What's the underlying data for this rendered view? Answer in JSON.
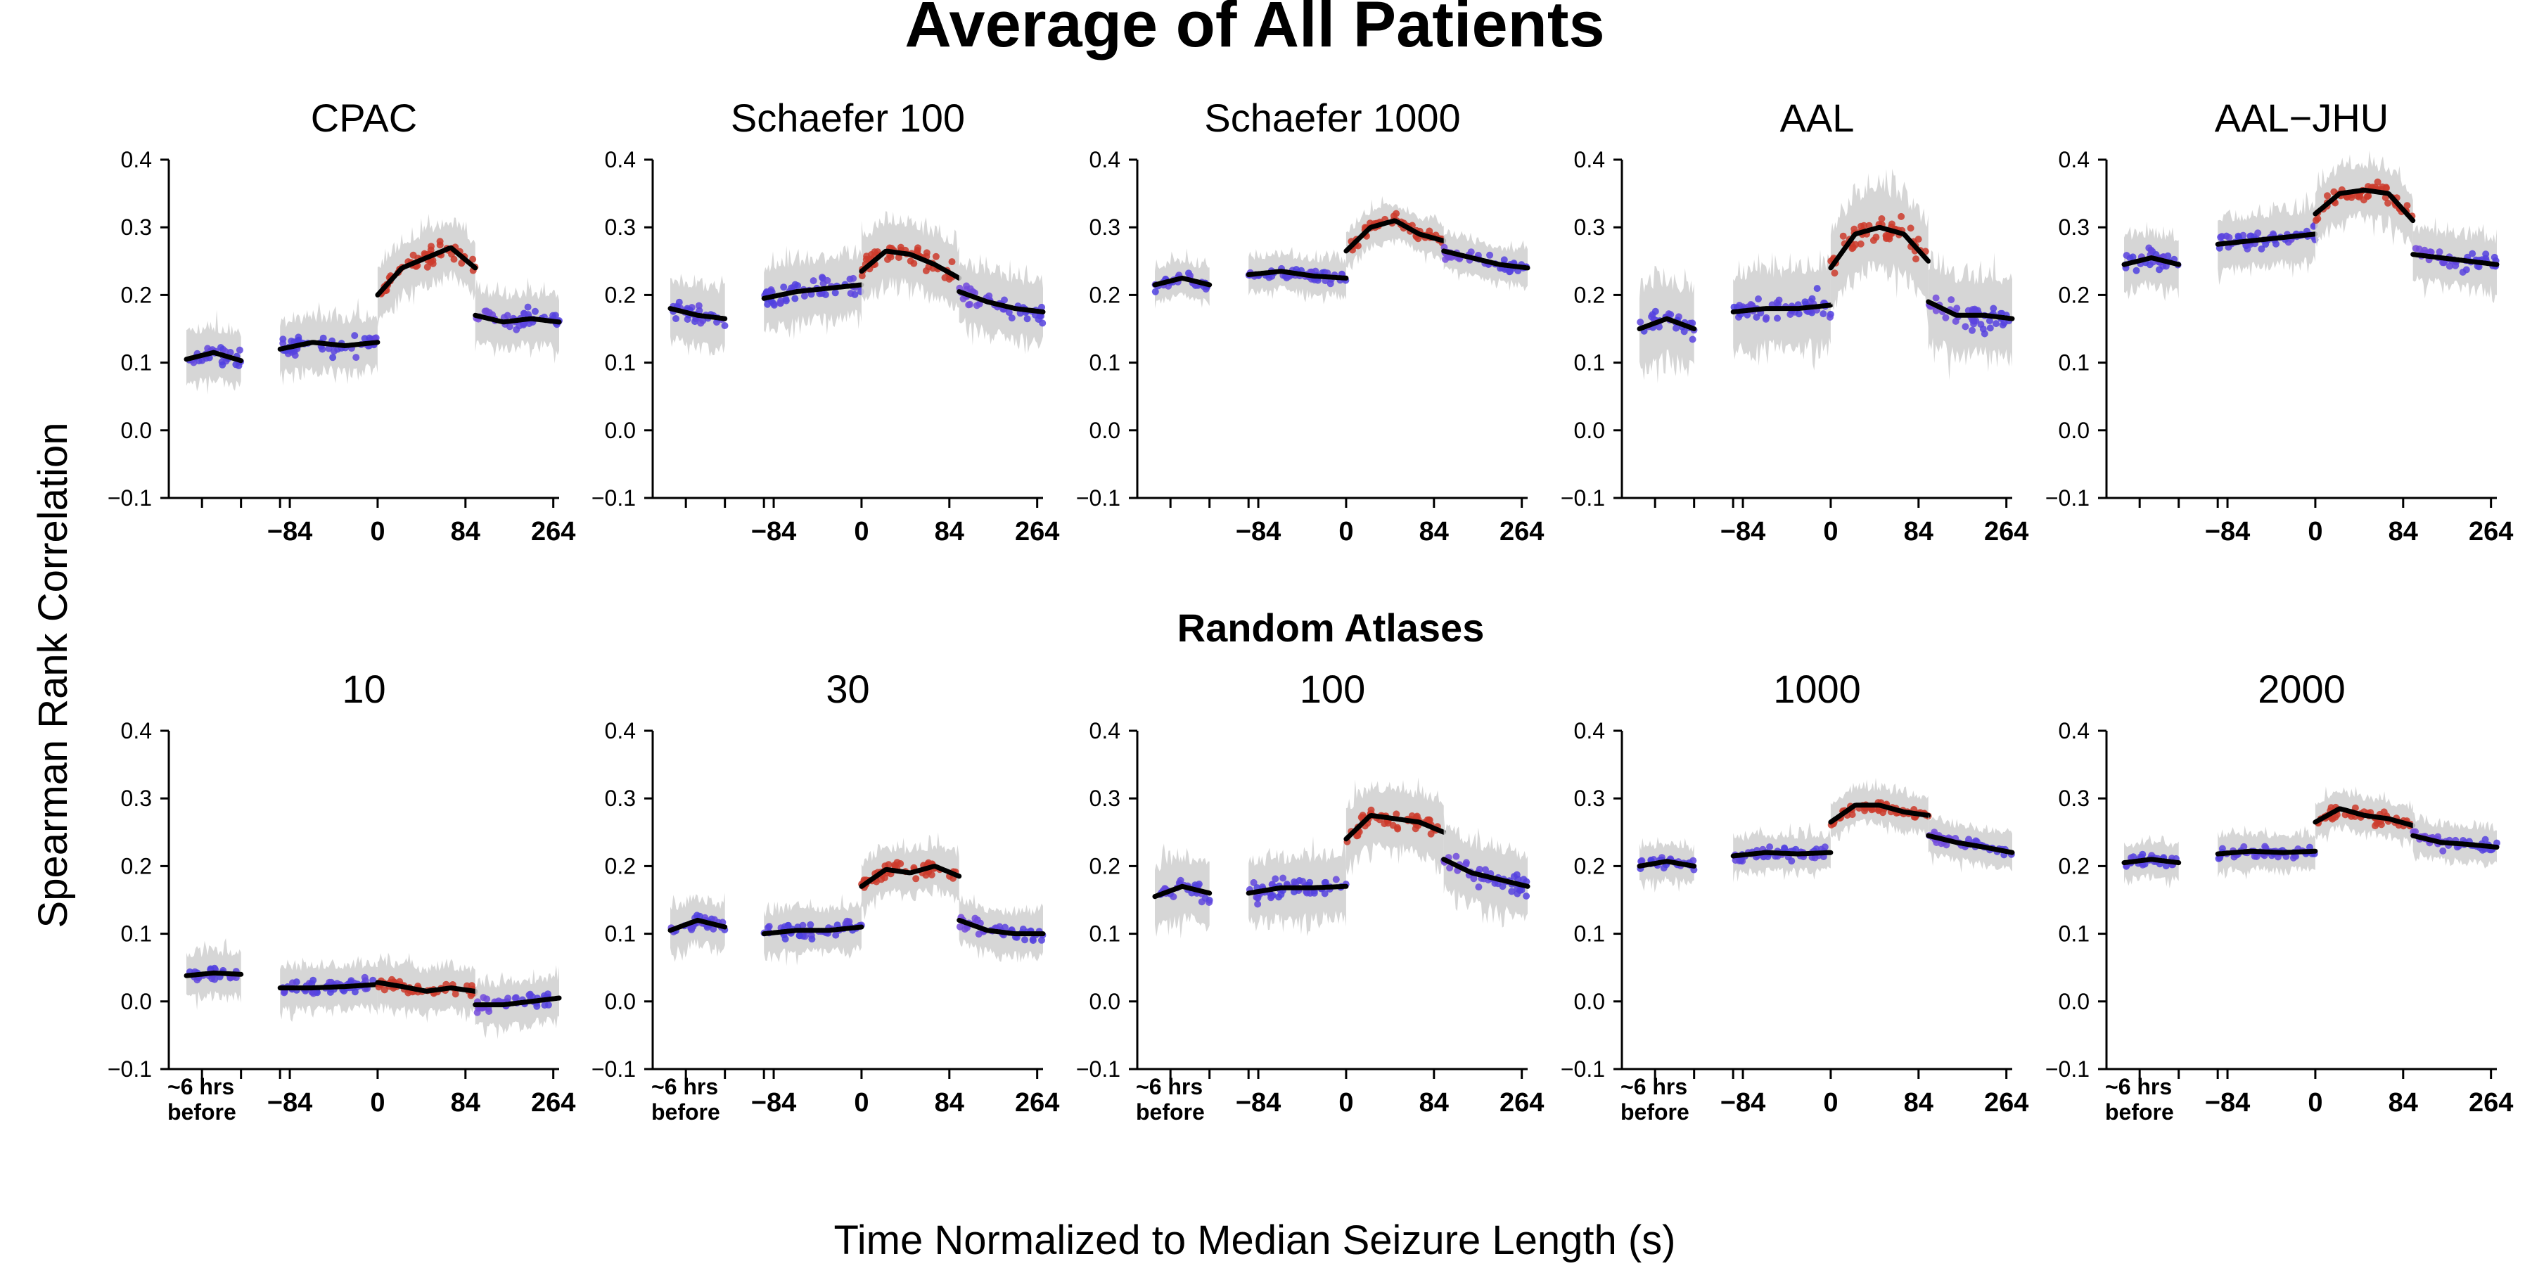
{
  "figure": {
    "title": "Average of All Patients",
    "row_title": "Random Atlases",
    "xlabel": "Time Normalized to Median Seizure Length (s)",
    "ylabel": "Spearman Rank Correlation"
  },
  "colors": {
    "interictal": "#4a3fe0",
    "ictal": "#cc3b2c",
    "mean_line": "#000000",
    "band": "#cfcfcf"
  },
  "chart_data": [
    {
      "type": "line",
      "title": "CPAC",
      "ylim": [
        -0.1,
        0.4
      ],
      "yticks": [
        "0.4",
        "0.3",
        "0.2",
        "0.1",
        "0.0",
        "−0.1"
      ],
      "xticks": [
        "",
        "−84",
        "0",
        "84",
        "264"
      ],
      "segments": {
        "baseline": [
          0.105,
          0.115,
          0.103
        ],
        "pre": [
          0.12,
          0.13,
          0.125,
          0.13
        ],
        "ictal": [
          0.2,
          0.24,
          0.255,
          0.27,
          0.24
        ],
        "post": [
          0.17,
          0.16,
          0.165,
          0.16
        ]
      },
      "noise": 0.03
    },
    {
      "type": "line",
      "title": "Schaefer 100",
      "ylim": [
        -0.1,
        0.4
      ],
      "yticks": [
        "0.4",
        "0.3",
        "0.2",
        "0.1",
        "0.0",
        "−0.1"
      ],
      "xticks": [
        "",
        "−84",
        "0",
        "84",
        "264"
      ],
      "segments": {
        "baseline": [
          0.18,
          0.17,
          0.165
        ],
        "pre": [
          0.195,
          0.205,
          0.21,
          0.215
        ],
        "ictal": [
          0.235,
          0.265,
          0.26,
          0.245,
          0.225
        ],
        "post": [
          0.205,
          0.19,
          0.18,
          0.175
        ]
      },
      "noise": 0.035
    },
    {
      "type": "line",
      "title": "Schaefer 1000",
      "ylim": [
        -0.1,
        0.4
      ],
      "yticks": [
        "0.4",
        "0.3",
        "0.2",
        "0.1",
        "0.0",
        "−0.1"
      ],
      "xticks": [
        "",
        "−84",
        "0",
        "84",
        "264"
      ],
      "segments": {
        "baseline": [
          0.215,
          0.225,
          0.215
        ],
        "pre": [
          0.23,
          0.235,
          0.228,
          0.225
        ],
        "ictal": [
          0.265,
          0.3,
          0.31,
          0.29,
          0.28
        ],
        "post": [
          0.265,
          0.255,
          0.245,
          0.24
        ]
      },
      "noise": 0.02
    },
    {
      "type": "line",
      "title": "AAL",
      "ylim": [
        -0.1,
        0.4
      ],
      "yticks": [
        "0.4",
        "0.3",
        "0.2",
        "0.1",
        "0.0",
        "−0.1"
      ],
      "xticks": [
        "",
        "−84",
        "0",
        "84",
        "264"
      ],
      "segments": {
        "baseline": [
          0.15,
          0.165,
          0.15
        ],
        "pre": [
          0.175,
          0.18,
          0.18,
          0.185
        ],
        "ictal": [
          0.24,
          0.29,
          0.3,
          0.29,
          0.25
        ],
        "post": [
          0.19,
          0.17,
          0.17,
          0.165
        ]
      },
      "noise": 0.045
    },
    {
      "type": "line",
      "title": "AAL−JHU",
      "ylim": [
        -0.1,
        0.4
      ],
      "yticks": [
        "0.4",
        "0.3",
        "0.2",
        "0.1",
        "0.0",
        "−0.1"
      ],
      "xticks": [
        "",
        "−84",
        "0",
        "84",
        "264"
      ],
      "segments": {
        "baseline": [
          0.245,
          0.255,
          0.245
        ],
        "pre": [
          0.275,
          0.28,
          0.285,
          0.29
        ],
        "ictal": [
          0.32,
          0.35,
          0.355,
          0.35,
          0.31
        ],
        "post": [
          0.26,
          0.255,
          0.25,
          0.245
        ]
      },
      "noise": 0.03
    },
    {
      "type": "line",
      "title": "10",
      "ylim": [
        -0.1,
        0.4
      ],
      "yticks": [
        "0.4",
        "0.3",
        "0.2",
        "0.1",
        "0.0",
        "−0.1"
      ],
      "xticks": [
        "~6 hrs before",
        "−84",
        "0",
        "84",
        "264"
      ],
      "segments": {
        "baseline": [
          0.038,
          0.042,
          0.04
        ],
        "pre": [
          0.02,
          0.02,
          0.022,
          0.025
        ],
        "ictal": [
          0.028,
          0.022,
          0.015,
          0.02,
          0.015
        ],
        "post": [
          -0.005,
          -0.005,
          0.0,
          0.005
        ]
      },
      "noise": 0.025
    },
    {
      "type": "line",
      "title": "30",
      "ylim": [
        -0.1,
        0.4
      ],
      "yticks": [
        "0.4",
        "0.3",
        "0.2",
        "0.1",
        "0.0",
        "−0.1"
      ],
      "xticks": [
        "~6 hrs before",
        "−84",
        "0",
        "84",
        "264"
      ],
      "segments": {
        "baseline": [
          0.105,
          0.12,
          0.11
        ],
        "pre": [
          0.1,
          0.105,
          0.105,
          0.11
        ],
        "ictal": [
          0.17,
          0.195,
          0.19,
          0.2,
          0.185
        ],
        "post": [
          0.12,
          0.105,
          0.1,
          0.1
        ]
      },
      "noise": 0.025
    },
    {
      "type": "line",
      "title": "100",
      "ylim": [
        -0.1,
        0.4
      ],
      "yticks": [
        "0.4",
        "0.3",
        "0.2",
        "0.1",
        "0.0",
        "−0.1"
      ],
      "xticks": [
        "~6 hrs before",
        "−84",
        "0",
        "84",
        "264"
      ],
      "segments": {
        "baseline": [
          0.155,
          0.17,
          0.16
        ],
        "pre": [
          0.16,
          0.168,
          0.168,
          0.17
        ],
        "ictal": [
          0.24,
          0.275,
          0.27,
          0.265,
          0.25
        ],
        "post": [
          0.21,
          0.19,
          0.18,
          0.17
        ]
      },
      "noise": 0.035
    },
    {
      "type": "line",
      "title": "1000",
      "ylim": [
        -0.1,
        0.4
      ],
      "yticks": [
        "0.4",
        "0.3",
        "0.2",
        "0.1",
        "0.0",
        "−0.1"
      ],
      "xticks": [
        "~6 hrs before",
        "−84",
        "0",
        "84",
        "264"
      ],
      "segments": {
        "baseline": [
          0.2,
          0.207,
          0.2
        ],
        "pre": [
          0.215,
          0.22,
          0.218,
          0.22
        ],
        "ictal": [
          0.265,
          0.29,
          0.29,
          0.28,
          0.275
        ],
        "post": [
          0.245,
          0.235,
          0.228,
          0.22
        ]
      },
      "noise": 0.02
    },
    {
      "type": "line",
      "title": "2000",
      "ylim": [
        -0.1,
        0.4
      ],
      "yticks": [
        "0.4",
        "0.3",
        "0.2",
        "0.1",
        "0.0",
        "−0.1"
      ],
      "xticks": [
        "~6 hrs before",
        "−84",
        "0",
        "84",
        "264"
      ],
      "segments": {
        "baseline": [
          0.205,
          0.21,
          0.205
        ],
        "pre": [
          0.218,
          0.222,
          0.22,
          0.222
        ],
        "ictal": [
          0.265,
          0.285,
          0.275,
          0.27,
          0.26
        ],
        "post": [
          0.245,
          0.235,
          0.232,
          0.228
        ]
      },
      "noise": 0.02
    }
  ]
}
